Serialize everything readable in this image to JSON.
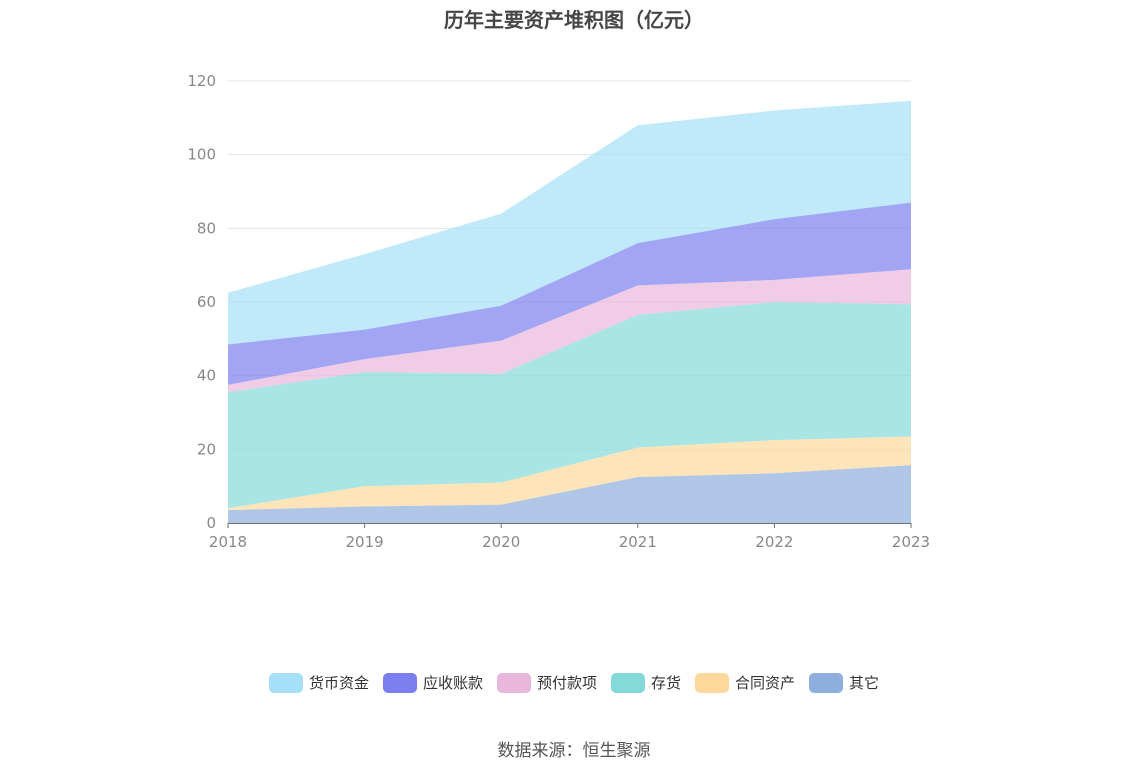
{
  "title": "历年主要资产堆积图（亿元）",
  "source": "数据来源：恒生聚源",
  "chart_data": {
    "type": "area",
    "stacked": true,
    "categories": [
      "2018",
      "2019",
      "2020",
      "2021",
      "2022",
      "2023"
    ],
    "ylim": [
      0,
      120
    ],
    "yticks": [
      0,
      20,
      40,
      60,
      80,
      100,
      120
    ],
    "grid": true,
    "legend_position": "bottom",
    "series": [
      {
        "name": "其它",
        "color": "#8eaedd",
        "values": [
          3.5,
          4.5,
          5.0,
          12.5,
          13.5,
          15.7
        ]
      },
      {
        "name": "合同资产",
        "color": "#fcd89b",
        "values": [
          0.5,
          5.5,
          6.0,
          8.0,
          9.0,
          7.8
        ]
      },
      {
        "name": "存货",
        "color": "#84dad8",
        "values": [
          31.5,
          31.0,
          29.5,
          36.0,
          37.5,
          35.9
        ]
      },
      {
        "name": "预付款项",
        "color": "#e9b6dc",
        "values": [
          2.0,
          3.5,
          9.0,
          8.0,
          6.0,
          9.5
        ]
      },
      {
        "name": "应收账款",
        "color": "#7b7ff0",
        "values": [
          11.0,
          8.0,
          9.5,
          11.5,
          16.5,
          18.1
        ]
      },
      {
        "name": "货币资金",
        "color": "#a5e0f8",
        "values": [
          14.0,
          20.5,
          25.0,
          32.0,
          29.5,
          27.6
        ]
      }
    ],
    "legend_order": [
      "货币资金",
      "应收账款",
      "预付款项",
      "存货",
      "合同资产",
      "其它"
    ]
  }
}
